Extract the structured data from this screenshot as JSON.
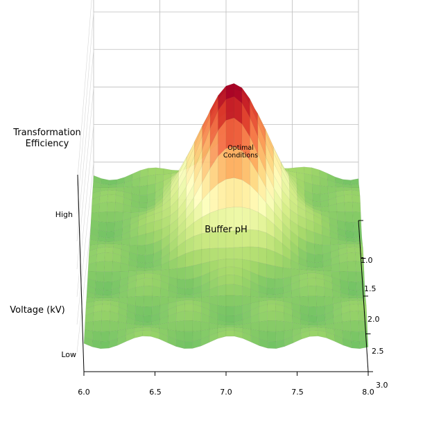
{
  "chart_data": {
    "type": "surface3d",
    "xlabel": "Buffer pH",
    "ylabel": "Voltage (kV)",
    "zlabel": "Transformation\nEfficiency",
    "xlim": [
      6.0,
      8.0
    ],
    "ylim": [
      1.0,
      3.0
    ],
    "x_ticks": [
      "6.0",
      "6.5",
      "7.0",
      "7.5",
      "8.0"
    ],
    "y_ticks": [
      "1.0",
      "1.5",
      "2.0",
      "2.5",
      "3.0"
    ],
    "z_ticks": [
      "Low",
      "High"
    ],
    "z_range": [
      0,
      1
    ],
    "colormap": [
      "#1a9850",
      "#66bd63",
      "#a6d96a",
      "#d9ef8b",
      "#ffffbf",
      "#fee08b",
      "#fdae61",
      "#f46d43",
      "#d73027",
      "#a50026"
    ],
    "peak": {
      "x": 7.05,
      "y": 1.5,
      "z": 1.0
    },
    "annotation": "Optimal\nConditions",
    "grid": true
  }
}
